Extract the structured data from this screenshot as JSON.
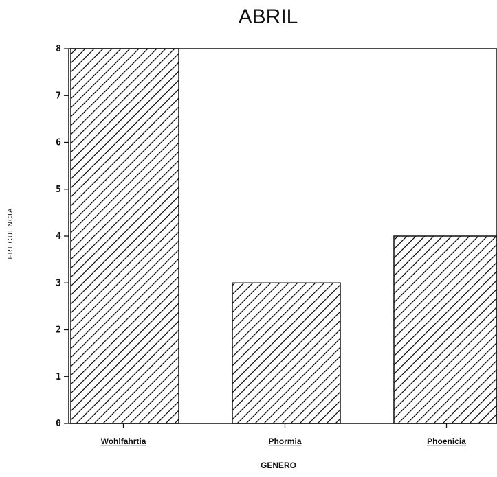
{
  "chart_data": {
    "type": "bar",
    "title": "ABRIL",
    "xlabel": "GENERO",
    "ylabel": "FRECUENCIA",
    "categories": [
      "Wohlfahrtia",
      "Phormia",
      "Phoenicia"
    ],
    "values": [
      8,
      3,
      4
    ],
    "ylim": [
      0,
      8
    ],
    "yticks": [
      "0",
      "1",
      "2",
      "3",
      "4",
      "5",
      "6",
      "7",
      "8"
    ],
    "grid": false,
    "bar_fill": "diagonal-hatch",
    "colors": {
      "ink": "#111111",
      "background": "#ffffff"
    }
  }
}
